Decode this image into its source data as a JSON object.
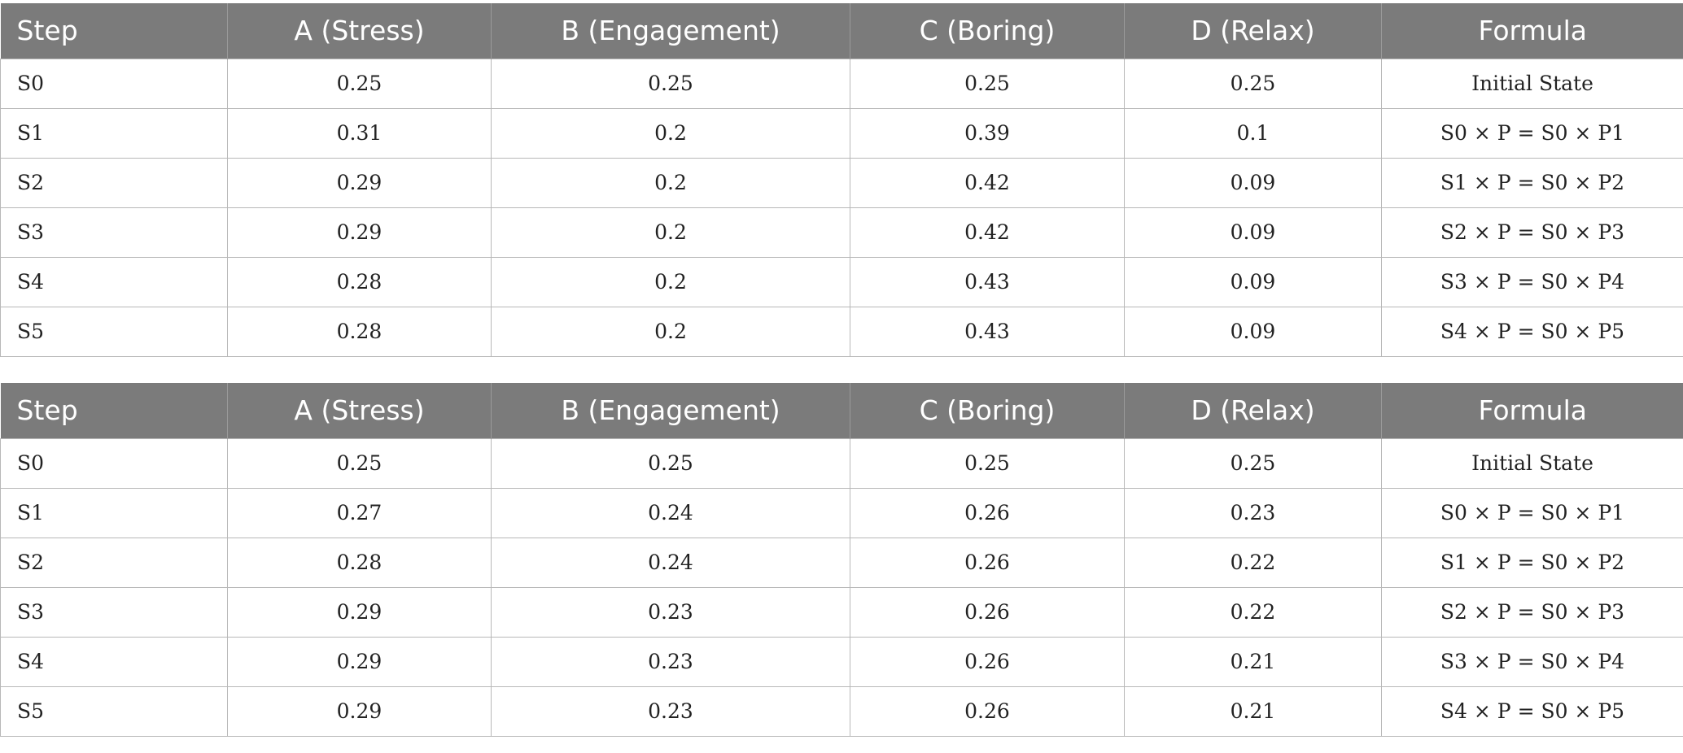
{
  "tables": [
    {
      "headers": [
        "Step",
        "A (Stress)",
        "B (Engagement)",
        "C (Boring)",
        "D (Relax)",
        "Formula"
      ],
      "rows": [
        [
          "S0",
          "0.25",
          "0.25",
          "0.25",
          "0.25",
          "Initial State"
        ],
        [
          "S1",
          "0.31",
          "0.2",
          "0.39",
          "0.1",
          "S0 × P = S0 × P1"
        ],
        [
          "S2",
          "0.29",
          "0.2",
          "0.42",
          "0.09",
          "S1 × P = S0 × P2"
        ],
        [
          "S3",
          "0.29",
          "0.2",
          "0.42",
          "0.09",
          "S2 × P = S0 × P3"
        ],
        [
          "S4",
          "0.28",
          "0.2",
          "0.43",
          "0.09",
          "S3 × P = S0 × P4"
        ],
        [
          "S5",
          "0.28",
          "0.2",
          "0.43",
          "0.09",
          "S4 × P = S0 × P5"
        ]
      ]
    },
    {
      "headers": [
        "Step",
        "A (Stress)",
        "B (Engagement)",
        "C (Boring)",
        "D (Relax)",
        "Formula"
      ],
      "rows": [
        [
          "S0",
          "0.25",
          "0.25",
          "0.25",
          "0.25",
          "Initial State"
        ],
        [
          "S1",
          "0.27",
          "0.24",
          "0.26",
          "0.23",
          "S0 × P = S0 × P1"
        ],
        [
          "S2",
          "0.28",
          "0.24",
          "0.26",
          "0.22",
          "S1 × P = S0 × P2"
        ],
        [
          "S3",
          "0.29",
          "0.23",
          "0.26",
          "0.22",
          "S2 × P = S0 × P3"
        ],
        [
          "S4",
          "0.29",
          "0.23",
          "0.26",
          "0.21",
          "S3 × P = S0 × P4"
        ],
        [
          "S5",
          "0.29",
          "0.23",
          "0.26",
          "0.21",
          "S4 × P = S0 × P5"
        ]
      ]
    }
  ]
}
